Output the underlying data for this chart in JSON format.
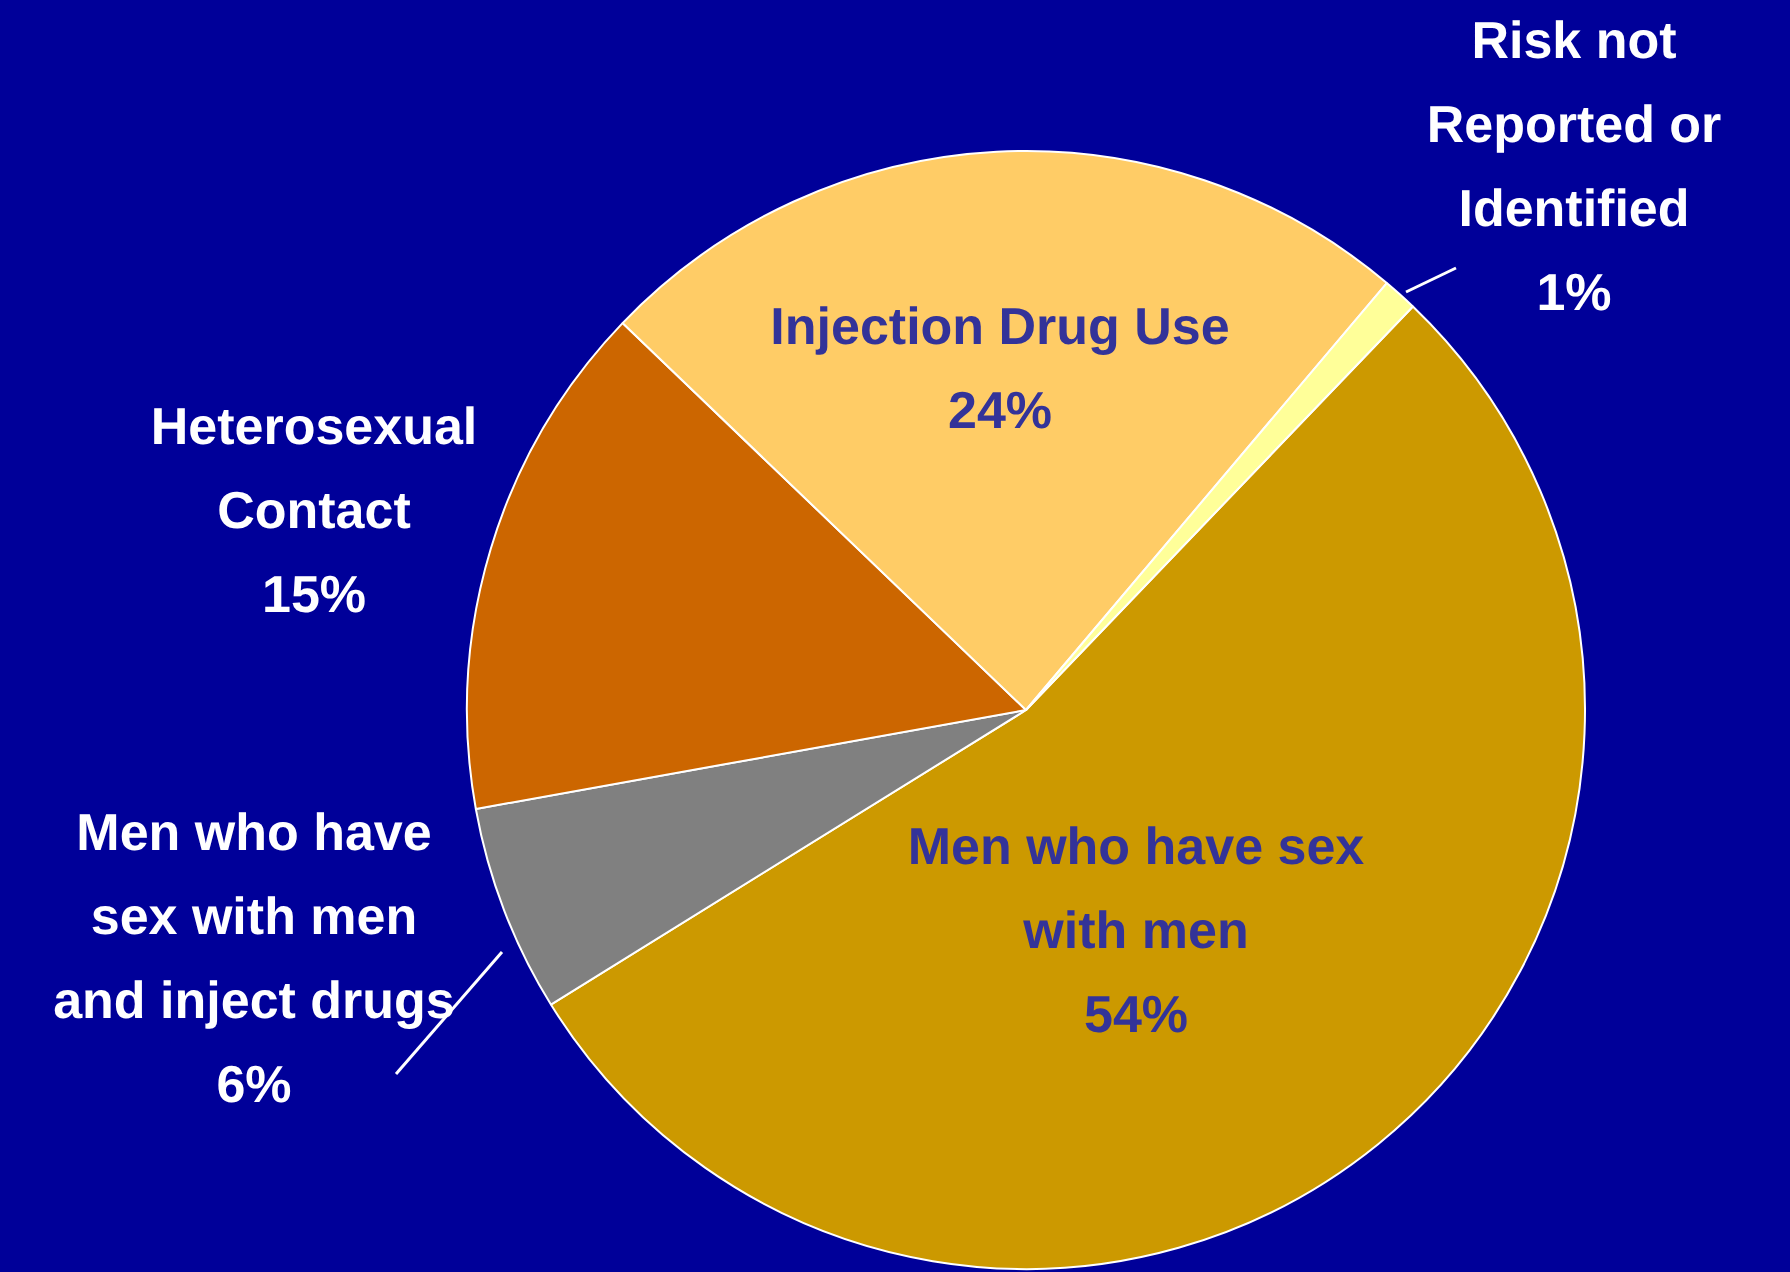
{
  "chart_data": {
    "type": "pie",
    "categories": [
      "Men who have sex with men",
      "Men who have sex with men and inject drugs",
      "Heterosexual Contact",
      "Injection Drug Use",
      "Risk not Reported or Identified"
    ],
    "values": [
      54,
      6,
      15,
      24,
      1
    ],
    "value_labels": [
      "54%",
      "6%",
      "15%",
      "24%",
      "1%"
    ],
    "colors": [
      "#cc9900",
      "#808080",
      "#cc6600",
      "#ffcc66",
      "#ffff99"
    ],
    "legend": false
  }
}
